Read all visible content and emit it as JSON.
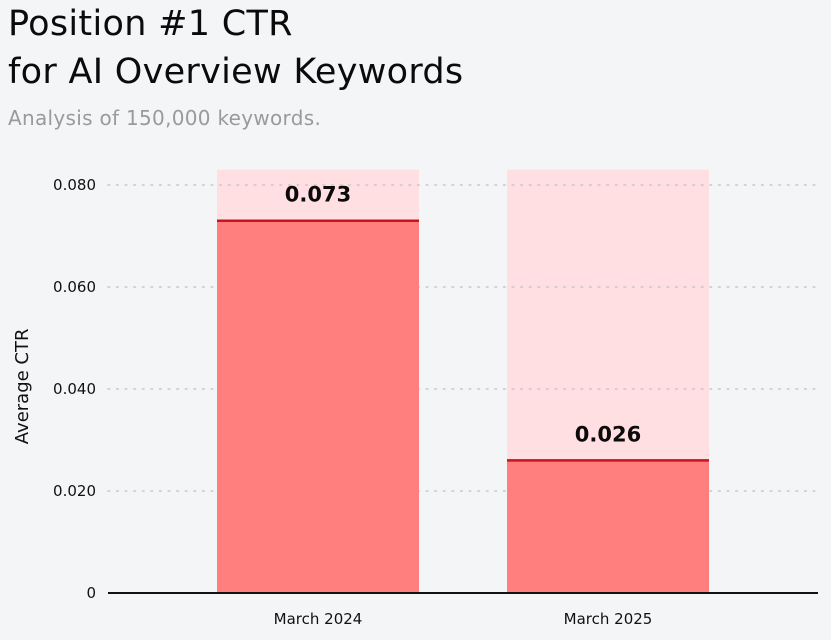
{
  "header": {
    "title_line1": "Position #1 CTR",
    "title_line2": "for AI Overview Keywords",
    "subtitle": "Analysis of 150,000 keywords."
  },
  "colors": {
    "bar_fill": "#ff7f7f",
    "bar_background": "#ffdfe1",
    "bar_top_line": "#c4161c",
    "grid": "#c8c8c8",
    "axis": "#111111"
  },
  "chart_data": {
    "type": "bar",
    "title": "Position #1 CTR for AI Overview Keywords",
    "subtitle": "Analysis of 150,000 keywords.",
    "categories": [
      "March 2024",
      "March 2025"
    ],
    "values": [
      0.073,
      0.026
    ],
    "value_labels": [
      "0.073",
      "0.026"
    ],
    "xlabel": "",
    "ylabel": "Average CTR",
    "ylim": [
      0,
      0.083
    ],
    "yticks": [
      0,
      0.02,
      0.04,
      0.06,
      0.08
    ],
    "ytick_labels": [
      "0",
      "0.020",
      "0.040",
      "0.060",
      "0.080"
    ],
    "grid": "horizontal dotted",
    "legend": "none"
  }
}
